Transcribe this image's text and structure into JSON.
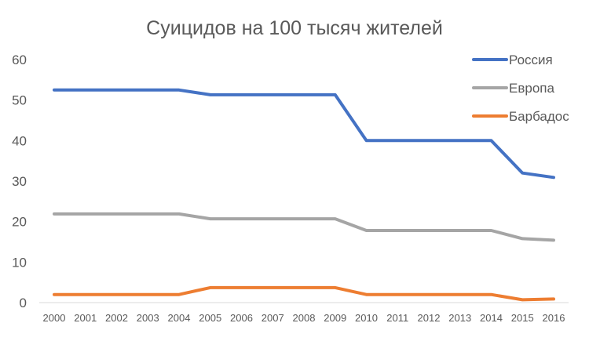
{
  "chart_data": {
    "type": "line",
    "title": "Суицидов на 100 тысяч жителей",
    "xlabel": "",
    "ylabel": "",
    "categories": [
      "2000",
      "2001",
      "2002",
      "2003",
      "2004",
      "2005",
      "2006",
      "2007",
      "2008",
      "2009",
      "2010",
      "2011",
      "2012",
      "2013",
      "2014",
      "2015",
      "2016"
    ],
    "ylim": [
      0,
      60
    ],
    "yticks": [
      "0",
      "10",
      "20",
      "30",
      "40",
      "50",
      "60"
    ],
    "grid": false,
    "legend_position": "top-right",
    "series": [
      {
        "name": "Россия",
        "color": "#4472c4",
        "values": [
          52.5,
          52.5,
          52.5,
          52.5,
          52.5,
          51.3,
          51.3,
          51.3,
          51.3,
          51.3,
          40.0,
          40.0,
          40.0,
          40.0,
          40.0,
          32.0,
          30.9
        ]
      },
      {
        "name": "Европа",
        "color": "#a5a5a5",
        "values": [
          21.9,
          21.9,
          21.9,
          21.9,
          21.9,
          20.7,
          20.7,
          20.7,
          20.7,
          20.7,
          17.8,
          17.8,
          17.8,
          17.8,
          17.8,
          15.8,
          15.4
        ]
      },
      {
        "name": "Барбадос",
        "color": "#ed7d31",
        "values": [
          2.0,
          2.0,
          2.0,
          2.0,
          2.0,
          3.7,
          3.7,
          3.7,
          3.7,
          3.7,
          2.0,
          2.0,
          2.0,
          2.0,
          2.0,
          0.7,
          0.9
        ]
      }
    ]
  }
}
